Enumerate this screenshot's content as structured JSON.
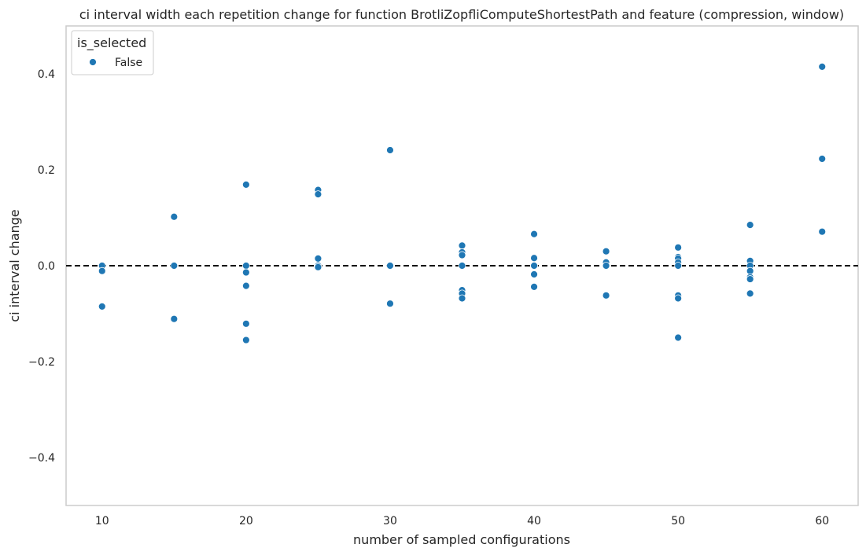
{
  "chart_data": {
    "type": "scatter",
    "title": "ci interval width each repetition change for function BrotliZopfliComputeShortestPath and feature (compression, window)",
    "xlabel": "number of sampled configurations",
    "ylabel": "ci interval change",
    "xlim": [
      7.5,
      62.5
    ],
    "ylim": [
      -0.5,
      0.5
    ],
    "xticks": [
      10,
      20,
      30,
      40,
      50,
      60
    ],
    "xtick_labels": [
      "10",
      "20",
      "30",
      "40",
      "50",
      "60"
    ],
    "yticks": [
      0.4,
      0.2,
      0.0,
      -0.2,
      -0.4
    ],
    "ytick_labels": [
      "0.4",
      "0.2",
      "0.0",
      "−0.2",
      "−0.4"
    ],
    "grid": false,
    "reference_line": {
      "y": 0.0,
      "style": "dashed",
      "color": "#000000"
    },
    "legend": {
      "title": "is_selected",
      "placement": "top-left"
    },
    "series": [
      {
        "name": "False",
        "color": "#1f77b4",
        "points": [
          [
            10,
            0.0
          ],
          [
            10,
            -0.011
          ],
          [
            10,
            -0.085
          ],
          [
            15,
            0.102
          ],
          [
            15,
            0.0
          ],
          [
            15,
            -0.111
          ],
          [
            20,
            0.169
          ],
          [
            20,
            0.0
          ],
          [
            20,
            -0.014
          ],
          [
            20,
            -0.042
          ],
          [
            20,
            -0.121
          ],
          [
            20,
            -0.155
          ],
          [
            25,
            0.158
          ],
          [
            25,
            0.149
          ],
          [
            25,
            0.015
          ],
          [
            25,
            0.0
          ],
          [
            25,
            -0.003
          ],
          [
            30,
            0.241
          ],
          [
            30,
            0.0
          ],
          [
            30,
            -0.079
          ],
          [
            35,
            0.042
          ],
          [
            35,
            0.028
          ],
          [
            35,
            0.022
          ],
          [
            35,
            0.0
          ],
          [
            35,
            -0.051
          ],
          [
            35,
            -0.058
          ],
          [
            35,
            -0.068
          ],
          [
            40,
            0.066
          ],
          [
            40,
            0.016
          ],
          [
            40,
            0.0
          ],
          [
            40,
            -0.018
          ],
          [
            40,
            -0.044
          ],
          [
            45,
            0.03
          ],
          [
            45,
            0.007
          ],
          [
            45,
            0.0
          ],
          [
            45,
            -0.062
          ],
          [
            50,
            0.038
          ],
          [
            50,
            0.018
          ],
          [
            50,
            0.015
          ],
          [
            50,
            0.007
          ],
          [
            50,
            0.0
          ],
          [
            50,
            -0.062
          ],
          [
            50,
            -0.068
          ],
          [
            50,
            -0.15
          ],
          [
            55,
            0.085
          ],
          [
            55,
            0.01
          ],
          [
            55,
            0.0
          ],
          [
            55,
            -0.011
          ],
          [
            55,
            -0.024
          ],
          [
            55,
            -0.028
          ],
          [
            55,
            -0.058
          ],
          [
            60,
            0.415
          ],
          [
            60,
            0.223
          ],
          [
            60,
            0.071
          ]
        ]
      }
    ]
  }
}
